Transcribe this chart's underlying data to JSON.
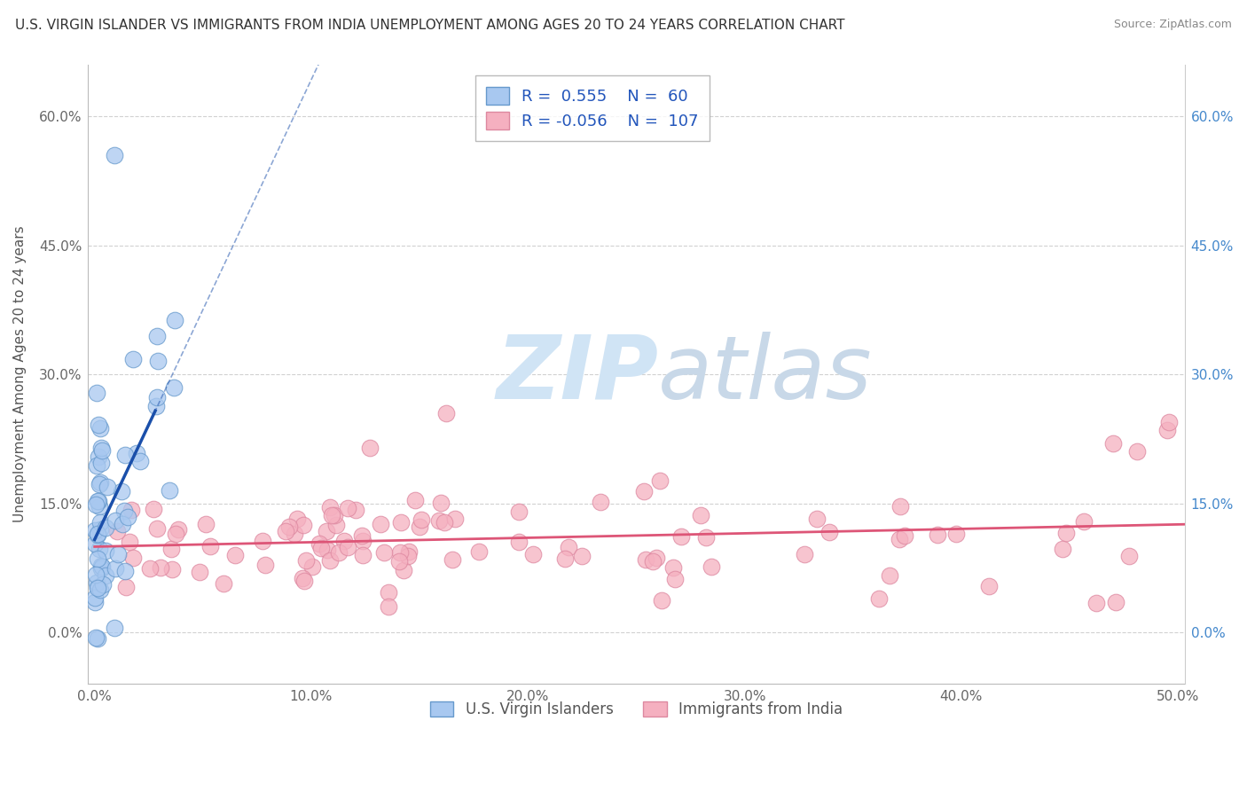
{
  "title": "U.S. VIRGIN ISLANDER VS IMMIGRANTS FROM INDIA UNEMPLOYMENT AMONG AGES 20 TO 24 YEARS CORRELATION CHART",
  "source": "Source: ZipAtlas.com",
  "ylabel": "Unemployment Among Ages 20 to 24 years",
  "xlim": [
    -0.003,
    0.503
  ],
  "ylim": [
    -0.06,
    0.66
  ],
  "xtick_vals": [
    0.0,
    0.1,
    0.2,
    0.3,
    0.4,
    0.5
  ],
  "xticklabels": [
    "0.0%",
    "10.0%",
    "20.0%",
    "30.0%",
    "40.0%",
    "50.0%"
  ],
  "ytick_vals": [
    0.0,
    0.15,
    0.3,
    0.45,
    0.6
  ],
  "yticklabels": [
    "0.0%",
    "15.0%",
    "30.0%",
    "45.0%",
    "60.0%"
  ],
  "legend_blue_label": "U.S. Virgin Islanders",
  "legend_pink_label": "Immigrants from India",
  "R_blue": 0.555,
  "N_blue": 60,
  "R_pink": -0.056,
  "N_pink": 107,
  "blue_color": "#a8c8f0",
  "blue_edge_color": "#6699cc",
  "pink_color": "#f5b0c0",
  "pink_edge_color": "#dd88a0",
  "blue_line_color": "#1a4faa",
  "pink_line_color": "#dd5577",
  "watermark_zip_color": "#d0e4f5",
  "watermark_atlas_color": "#c8d8e8",
  "background_color": "#ffffff",
  "grid_color": "#cccccc",
  "title_fontsize": 11,
  "axis_label_fontsize": 11,
  "tick_fontsize": 11,
  "legend_fontsize": 13,
  "right_tick_color": "#4488cc"
}
